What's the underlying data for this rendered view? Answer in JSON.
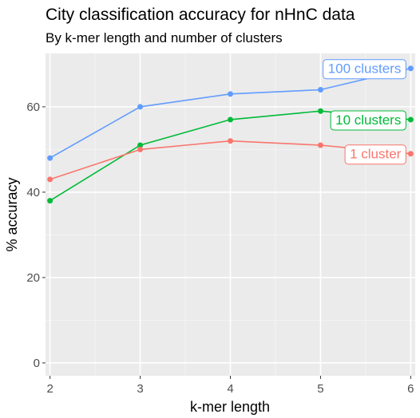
{
  "chart_data": {
    "type": "line",
    "title": "City classification accuracy for nHnC data",
    "subtitle": "By k-mer length and number of clusters",
    "xlabel": "k-mer length",
    "ylabel": "% accuracy",
    "x": [
      2,
      3,
      4,
      5,
      6
    ],
    "x_ticks": [
      "2",
      "3",
      "4",
      "5",
      "6"
    ],
    "y_ticks": [
      "0",
      "20",
      "40",
      "60"
    ],
    "xlim": [
      1.95,
      6.05
    ],
    "ylim": [
      -3,
      72.5
    ],
    "grid": true,
    "legend": "direct labels at line ends",
    "series": [
      {
        "name": "100 clusters",
        "color": "#619CFF",
        "values": [
          48,
          60,
          63,
          64,
          69
        ]
      },
      {
        "name": "10 clusters",
        "color": "#00BA38",
        "values": [
          38,
          51,
          57,
          59,
          57
        ]
      },
      {
        "name": "1 cluster",
        "color": "#F8766D",
        "values": [
          43,
          50,
          52,
          51,
          49
        ]
      }
    ]
  }
}
